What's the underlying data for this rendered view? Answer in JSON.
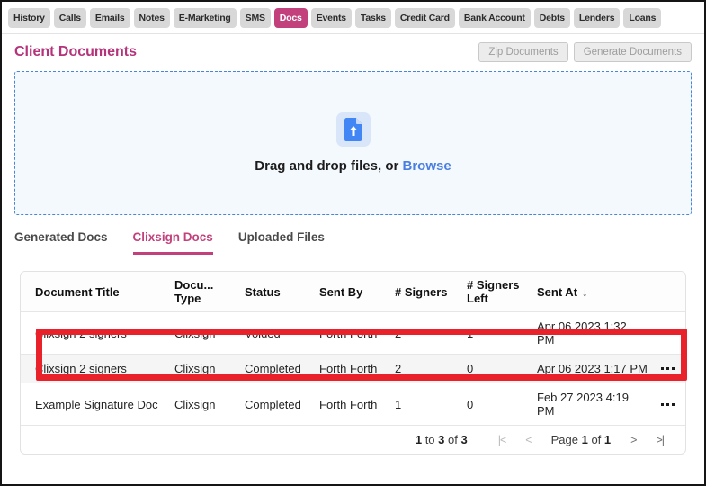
{
  "colors": {
    "accent_pink": "#c2417c",
    "highlight_red": "#e8212b",
    "link_blue": "#4a7fe0",
    "dropzone_border_blue": "#4a86d8",
    "tab_gray": "#d8d8d8"
  },
  "top_tabs": {
    "items": [
      {
        "label": "History",
        "active": false
      },
      {
        "label": "Calls",
        "active": false
      },
      {
        "label": "Emails",
        "active": false
      },
      {
        "label": "Notes",
        "active": false
      },
      {
        "label": "E-Marketing",
        "active": false
      },
      {
        "label": "SMS",
        "active": false
      },
      {
        "label": "Docs",
        "active": true
      },
      {
        "label": "Events",
        "active": false
      },
      {
        "label": "Tasks",
        "active": false
      },
      {
        "label": "Credit Card",
        "active": false
      },
      {
        "label": "Bank Account",
        "active": false
      },
      {
        "label": "Debts",
        "active": false
      },
      {
        "label": "Lenders",
        "active": false
      },
      {
        "label": "Loans",
        "active": false
      }
    ]
  },
  "header": {
    "title": "Client Documents",
    "zip_button": "Zip Documents",
    "generate_button": "Generate Documents"
  },
  "dropzone": {
    "icon": "file-upload-icon",
    "text": "Drag and drop files, or",
    "browse_label": "Browse"
  },
  "doc_tabs": {
    "items": [
      {
        "label": "Generated Docs",
        "active": false
      },
      {
        "label": "Clixsign Docs",
        "active": true
      },
      {
        "label": "Uploaded Files",
        "active": false
      }
    ]
  },
  "table": {
    "columns": [
      {
        "label": "Document Title",
        "sorted": false
      },
      {
        "label": "Docu... Type",
        "sorted": false
      },
      {
        "label": "Status",
        "sorted": false
      },
      {
        "label": "Sent By",
        "sorted": false
      },
      {
        "label": "# Signers",
        "sorted": false
      },
      {
        "label": "# Signers Left",
        "sorted": false
      },
      {
        "label": "Sent At",
        "sorted": true
      },
      {
        "label": "",
        "sorted": false
      }
    ],
    "sort_icon": "↓",
    "rows": [
      {
        "document_title": "Clixsign 2 signers",
        "document_type": "Clixsign",
        "status": "Voided",
        "sent_by": "Forth Forth",
        "signers": "2",
        "signers_left": "1",
        "sent_at": "Apr 06 2023 1:32 PM",
        "highlighted": true
      },
      {
        "document_title": "Clixsign 2 signers",
        "document_type": "Clixsign",
        "status": "Completed",
        "sent_by": "Forth Forth",
        "signers": "2",
        "signers_left": "0",
        "sent_at": "Apr 06 2023 1:17 PM",
        "highlighted": false
      },
      {
        "document_title": "Example Signature Doc",
        "document_type": "Clixsign",
        "status": "Completed",
        "sent_by": "Forth Forth",
        "signers": "1",
        "signers_left": "0",
        "sent_at": "Feb 27 2023 4:19 PM",
        "highlighted": false
      }
    ],
    "row_menu_icon": "ellipsis-menu",
    "pagination": {
      "from": "1",
      "to_word": "to",
      "to": "3",
      "of_word": "of",
      "total": "3",
      "first_icon": "|<",
      "prev_icon": "<",
      "next_icon": ">",
      "last_icon": ">|",
      "page_word": "Page",
      "page_current": "1",
      "page_of_word": "of",
      "page_total": "1"
    }
  }
}
